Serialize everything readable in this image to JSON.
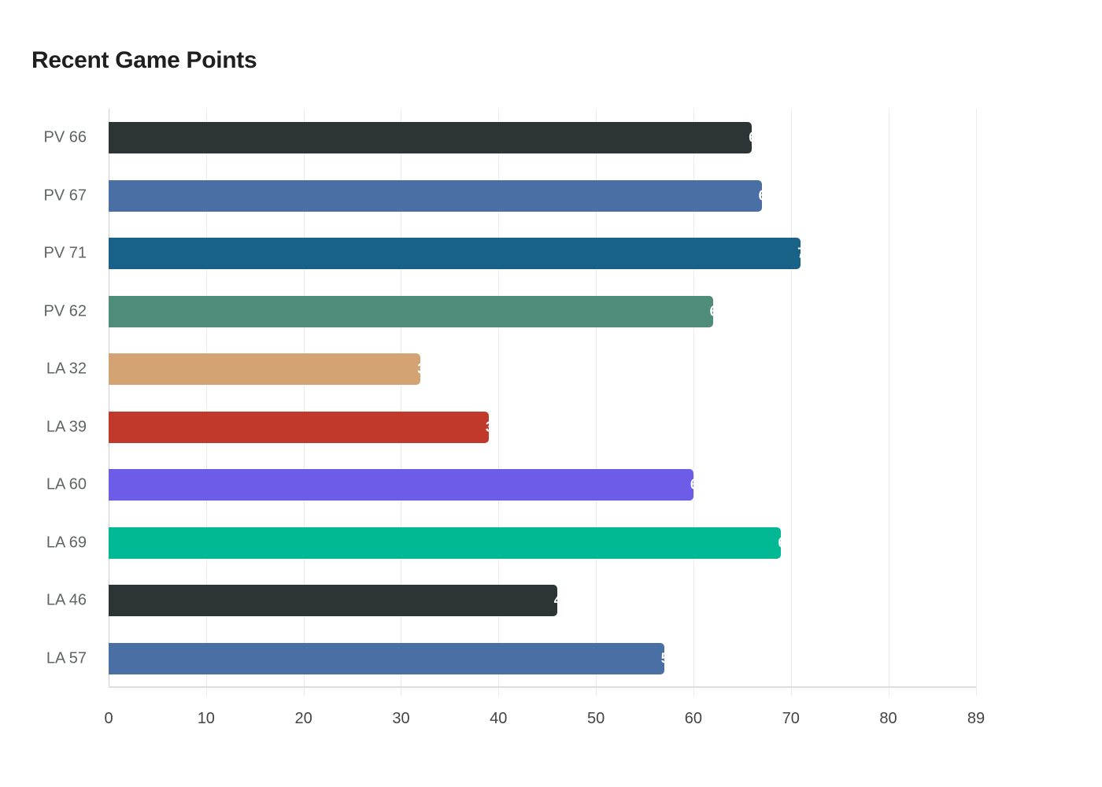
{
  "title": "Recent Game Points",
  "chart_data": {
    "type": "bar",
    "orientation": "horizontal",
    "title": "Recent Game Points",
    "xlabel": "",
    "ylabel": "",
    "xlim": [
      0,
      89
    ],
    "grid": true,
    "categories": [
      "PV 66",
      "PV 67",
      "PV 71",
      "PV 62",
      "LA 32",
      "LA 39",
      "LA 60",
      "LA 69",
      "LA 46",
      "LA 57"
    ],
    "values": [
      66,
      67,
      71,
      62,
      32,
      39,
      60,
      69,
      46,
      57
    ],
    "colors": [
      "#2d3436",
      "#4a6fa5",
      "#186288",
      "#4f8c7a",
      "#d4a373",
      "#c0392b",
      "#6c5ce7",
      "#00b894",
      "#2d3436",
      "#4a6fa5"
    ],
    "x_ticks": [
      "0",
      "10",
      "20",
      "30",
      "40",
      "50",
      "60",
      "70",
      "80",
      "89"
    ],
    "x_tick_values": [
      0,
      10,
      20,
      30,
      40,
      50,
      60,
      70,
      80,
      89
    ],
    "data_labels": [
      "66",
      "67",
      "71",
      "62",
      "32",
      "39",
      "60",
      "69",
      "46",
      "57"
    ]
  }
}
